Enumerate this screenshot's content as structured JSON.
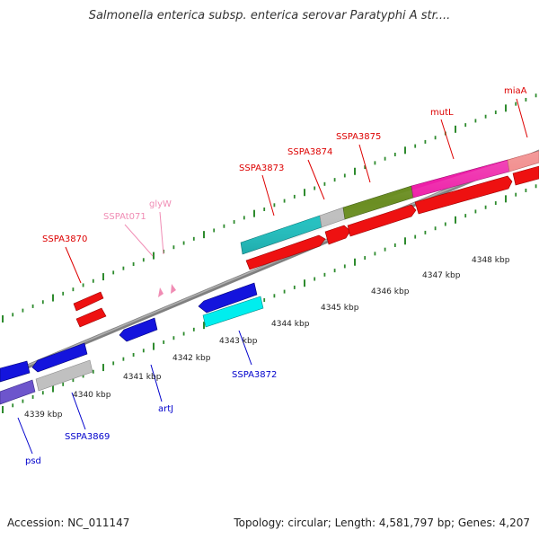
{
  "title": "Salmonella enterica subsp. enterica serovar Paratyphi A str....",
  "footer": {
    "accession": "Accession: NC_011147",
    "summary": "Topology: circular; Length: 4,581,797 bp; Genes: 4,207"
  },
  "colors": {
    "backbone": "#8c8c8c",
    "tick": "#2e8b2e",
    "forward_label": "#dd0000",
    "reverse_label": "#0000cc",
    "trna_label": "#f08cb4"
  },
  "forward_labels": [
    {
      "text": "SSPA3870",
      "color": "#dd0000"
    },
    {
      "text": "SSPAt071",
      "color": "#f08cb4"
    },
    {
      "text": "glyW",
      "color": "#f08cb4"
    },
    {
      "text": "SSPA3873",
      "color": "#dd0000"
    },
    {
      "text": "SSPA3874",
      "color": "#dd0000"
    },
    {
      "text": "SSPA3875",
      "color": "#dd0000"
    },
    {
      "text": "mutL",
      "color": "#dd0000"
    },
    {
      "text": "miaA",
      "color": "#dd0000"
    }
  ],
  "reverse_labels": [
    {
      "text": "psd",
      "color": "#0000cc"
    },
    {
      "text": "SSPA3869",
      "color": "#0000cc"
    },
    {
      "text": "artJ",
      "color": "#0000cc"
    },
    {
      "text": "SSPA3872",
      "color": "#0000cc"
    }
  ],
  "kbp_labels": [
    "4339 kbp",
    "4340 kbp",
    "4341 kbp",
    "4342 kbp",
    "4343 kbp",
    "4344 kbp",
    "4345 kbp",
    "4346 kbp",
    "4347 kbp",
    "4348 kbp"
  ]
}
